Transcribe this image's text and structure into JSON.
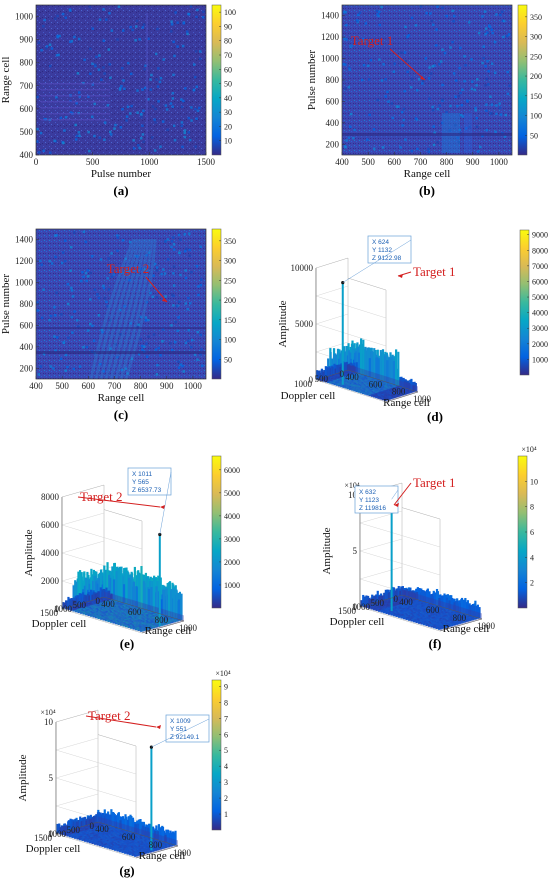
{
  "colors": {
    "parula": [
      "#352a87",
      "#0363e1",
      "#1485d4",
      "#06a7c6",
      "#38b99e",
      "#92bf73",
      "#d9ba56",
      "#fcce2e",
      "#f9fb0e"
    ],
    "target": "#d42020",
    "tip": "#1a5fb4"
  },
  "chart_data": [
    {
      "id": "a",
      "type": "heatmap",
      "caption": "(a)",
      "xlabel": "Pulse number",
      "ylabel": "Range cell",
      "xticks": [
        0,
        500,
        1000,
        1500
      ],
      "yticks": [
        400,
        500,
        600,
        700,
        800,
        900,
        1000
      ],
      "xlim": [
        0,
        1500
      ],
      "ylim": [
        400,
        1050
      ],
      "colorbar": {
        "ticks": [
          10,
          20,
          30,
          40,
          50,
          60,
          70,
          80,
          90,
          100
        ],
        "range": [
          0,
          105
        ],
        "exponent": ""
      },
      "target_label": ""
    },
    {
      "id": "b",
      "type": "heatmap",
      "caption": "(b)",
      "xlabel": "Range cell",
      "ylabel": "Pulse number",
      "xticks": [
        400,
        500,
        600,
        700,
        800,
        900,
        1000
      ],
      "yticks": [
        200,
        400,
        600,
        800,
        1000,
        1200,
        1400
      ],
      "xlim": [
        400,
        1050
      ],
      "ylim": [
        100,
        1500
      ],
      "colorbar": {
        "ticks": [
          50,
          100,
          150,
          200,
          250,
          300,
          350
        ],
        "range": [
          0,
          380
        ],
        "exponent": ""
      },
      "target_label": "Target 1"
    },
    {
      "id": "c",
      "type": "heatmap",
      "caption": "(c)",
      "xlabel": "Range cell",
      "ylabel": "Pulse number",
      "xticks": [
        400,
        500,
        600,
        700,
        800,
        900,
        1000
      ],
      "yticks": [
        200,
        400,
        600,
        800,
        1000,
        1200,
        1400
      ],
      "xlim": [
        400,
        1050
      ],
      "ylim": [
        100,
        1500
      ],
      "colorbar": {
        "ticks": [
          50,
          100,
          150,
          200,
          250,
          300,
          350
        ],
        "range": [
          0,
          380
        ],
        "exponent": ""
      },
      "target_label": "Target 2"
    },
    {
      "id": "d",
      "type": "surface3d",
      "caption": "(d)",
      "xlabel": "Range cell",
      "ylabel": "Doppler cell",
      "zlabel": "Amplitude",
      "range_ticks": [
        "400",
        "600",
        "800",
        "1000"
      ],
      "doppler_ticks": [
        "0",
        "500",
        "1000"
      ],
      "z_ticks": [
        "0",
        "5000",
        "10000"
      ],
      "z_exponent": "",
      "zmax": 10000,
      "colorbar": {
        "ticks": [
          1000,
          2000,
          3000,
          4000,
          5000,
          6000,
          7000,
          8000,
          9000
        ],
        "range": [
          0,
          9300
        ],
        "exponent": ""
      },
      "peak": {
        "x": 624,
        "y": 1132,
        "z": 9122.98
      },
      "datatip": [
        "X 624",
        "Y 1132",
        "Z 9122.98"
      ],
      "target_label": "Target 1"
    },
    {
      "id": "e",
      "type": "surface3d",
      "caption": "(e)",
      "xlabel": "Range cell",
      "ylabel": "Doppler cell",
      "zlabel": "Amplitude",
      "range_ticks": [
        "400",
        "600",
        "800",
        "1000"
      ],
      "doppler_ticks": [
        "0",
        "500",
        "1000",
        "1500"
      ],
      "z_ticks": [
        "0",
        "2000",
        "4000",
        "6000",
        "8000"
      ],
      "z_exponent": "",
      "zmax": 8000,
      "colorbar": {
        "ticks": [
          1000,
          2000,
          3000,
          4000,
          5000,
          6000
        ],
        "range": [
          0,
          6600
        ],
        "exponent": ""
      },
      "peak": {
        "x": 1011,
        "y": 565,
        "z": 6537.73
      },
      "datatip": [
        "X 1011",
        "Y 565",
        "Z 6537.73"
      ],
      "target_label": "Target 2"
    },
    {
      "id": "f",
      "type": "surface3d",
      "caption": "(f)",
      "xlabel": "Range cell",
      "ylabel": "Doppler cell",
      "zlabel": "Amplitude",
      "range_ticks": [
        "400",
        "600",
        "800",
        "1000"
      ],
      "doppler_ticks": [
        "0",
        "500",
        "1000",
        "1500"
      ],
      "z_ticks": [
        "0",
        "5",
        "10"
      ],
      "z_exponent": "×10⁴",
      "zmax": 12,
      "colorbar": {
        "ticks": [
          2,
          4,
          6,
          8,
          10
        ],
        "range": [
          0,
          12
        ],
        "exponent": "×10⁴"
      },
      "peak": {
        "x": 632,
        "y": 1123,
        "z": 119816
      },
      "datatip": [
        "X 632",
        "Y 1123",
        "Z 119816"
      ],
      "target_label": "Target 1"
    },
    {
      "id": "g",
      "type": "surface3d",
      "caption": "(g)",
      "xlabel": "Range cell",
      "ylabel": "Doppler cell",
      "zlabel": "Amplitude",
      "range_ticks": [
        "400",
        "600",
        "800",
        "1000"
      ],
      "doppler_ticks": [
        "0",
        "500",
        "1000",
        "1500"
      ],
      "z_ticks": [
        "0",
        "5",
        "10"
      ],
      "z_exponent": "×10⁴",
      "zmax": 10,
      "colorbar": {
        "ticks": [
          1,
          2,
          3,
          4,
          5,
          6,
          7,
          8,
          9
        ],
        "range": [
          0,
          9.4
        ],
        "exponent": "×10⁴"
      },
      "peak": {
        "x": 1009,
        "y": 551,
        "z": 92149.1
      },
      "datatip": [
        "X 1009",
        "Y 551",
        "Z 92149.1"
      ],
      "target_label": "Target 2"
    }
  ]
}
